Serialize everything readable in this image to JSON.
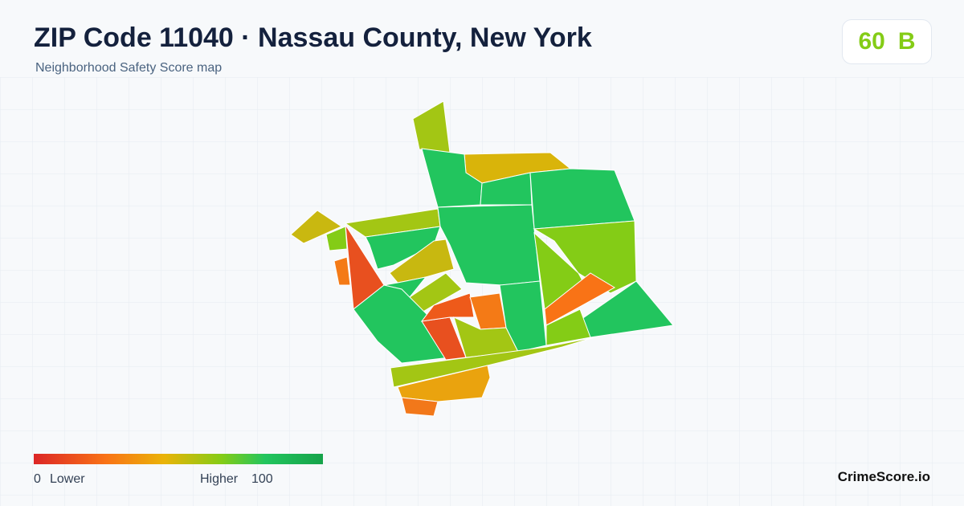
{
  "header": {
    "title": "ZIP Code 11040 · Nassau County, New York",
    "subtitle": "Neighborhood Safety Score map"
  },
  "score": {
    "value": 60,
    "grade": "B"
  },
  "legend": {
    "min": 0,
    "min_label": "Lower",
    "max_label": "Higher",
    "max": 100
  },
  "brand": "CrimeScore.io"
}
